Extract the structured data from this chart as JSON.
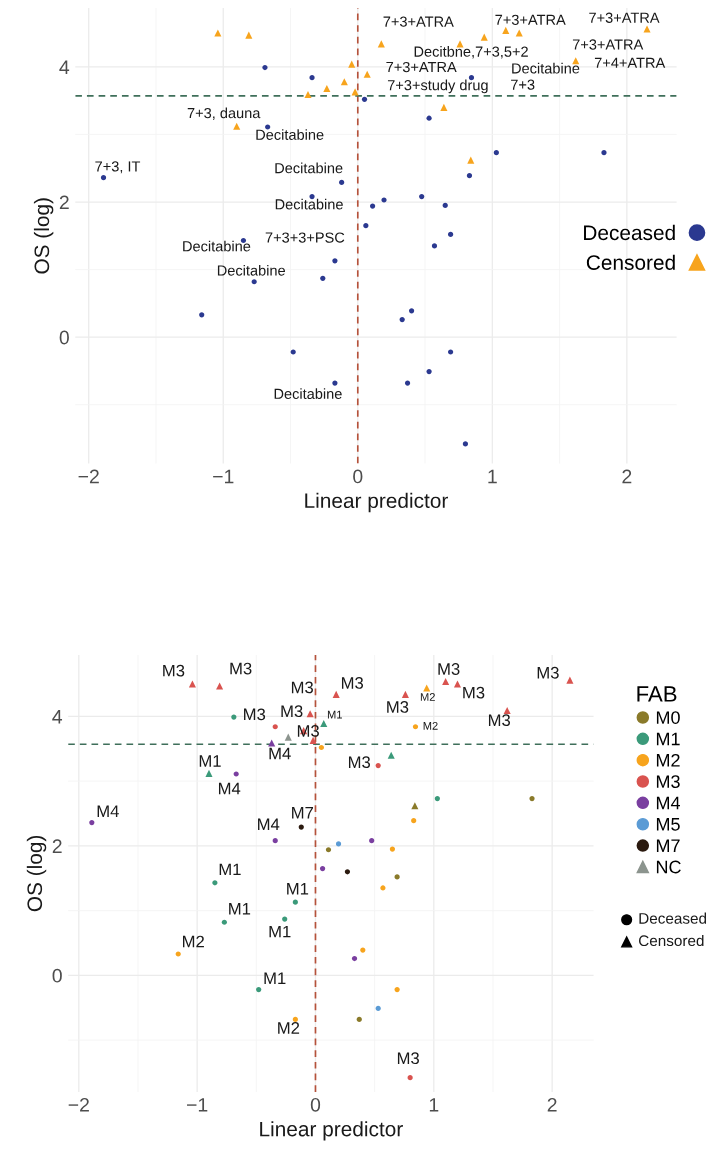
{
  "chart_data": [
    {
      "type": "scatter",
      "xlabel": "Linear predictor",
      "ylabel": "OS (log)",
      "xlim": [
        -2.1,
        2.37
      ],
      "ylim": [
        -1.87,
        4.87
      ],
      "xticks": [
        -2,
        -1,
        0,
        1,
        2
      ],
      "yticks": [
        0,
        2,
        4
      ],
      "grid": true,
      "legend": "right",
      "series": [
        {
          "name": "Deceased",
          "color": "#2b3990",
          "marker": "circle",
          "x": [
            -0.69,
            -0.34,
            -0.67,
            -1.89,
            -0.12,
            -0.34,
            -0.85,
            -0.17,
            -0.26,
            -0.77,
            -1.16,
            -0.48,
            -0.17,
            0.33,
            0.4,
            0.69,
            0.53,
            0.37,
            0.8,
            0.05,
            0.53,
            1.03,
            1.83,
            0.83,
            0.475,
            0.65,
            0.195,
            0.11,
            0.06,
            0.69,
            0.57,
            0.845
          ],
          "values": [
            3.99,
            3.84,
            3.11,
            2.36,
            2.29,
            2.08,
            1.43,
            1.13,
            0.87,
            0.82,
            0.33,
            -0.22,
            -0.68,
            0.26,
            0.39,
            -0.22,
            -0.51,
            -0.68,
            -1.58,
            3.52,
            3.24,
            2.73,
            2.73,
            2.39,
            2.08,
            1.95,
            2.03,
            1.94,
            1.65,
            1.52,
            1.35,
            3.84
          ]
        },
        {
          "name": "Censored",
          "color": "#f7a41d",
          "marker": "triangle",
          "x": [
            -1.04,
            -0.81,
            -0.045,
            -0.1,
            -0.23,
            -0.37,
            -0.02,
            -0.9,
            0.175,
            0.76,
            0.94,
            1.1,
            1.2,
            2.15,
            1.62,
            0.07,
            0.64,
            0.84
          ],
          "values": [
            4.5,
            4.47,
            4.04,
            3.78,
            3.68,
            3.59,
            3.63,
            3.12,
            4.34,
            4.34,
            4.44,
            4.54,
            4.5,
            4.56,
            4.09,
            3.89,
            3.4,
            2.62
          ]
        }
      ],
      "ref_lines": [
        {
          "axis": "x",
          "value": 0,
          "color": "#b5523b",
          "line_style": "dashed"
        },
        {
          "axis": "y",
          "value": 3.57,
          "color": "#3f6f5a",
          "line_style": "dashed"
        }
      ],
      "annotations": [
        {
          "text": "7+3, dauna",
          "x": -0.9,
          "y": 3.12
        },
        {
          "text": "Decitabine",
          "x": -0.67,
          "y": 3.11
        },
        {
          "text": "7+3, IT",
          "x": -1.89,
          "y": 2.36
        },
        {
          "text": "Decitabine",
          "x": -0.12,
          "y": 2.29
        },
        {
          "text": "Decitabine",
          "x": -0.34,
          "y": 2.08
        },
        {
          "text": "7+3+3+PSC",
          "x": -0.17,
          "y": 1.13
        },
        {
          "text": "Decitabine",
          "x": -0.85,
          "y": 1.43
        },
        {
          "text": "Decitabine",
          "x": -0.77,
          "y": 0.82
        },
        {
          "text": "Decitabine",
          "x": -0.17,
          "y": -0.68
        },
        {
          "text": "7+3+ATRA",
          "x": 0.175,
          "y": 4.34
        },
        {
          "text": "Decitbne,7+3,5+2",
          "x": 0.76,
          "y": 4.34
        },
        {
          "text": "7+3+ATRA",
          "x": 1.2,
          "y": 4.5
        },
        {
          "text": "7+3+ATRA",
          "x": 2.15,
          "y": 4.56
        },
        {
          "text": "7+3+ATRA",
          "x": 1.62,
          "y": 4.09
        },
        {
          "text": "7+3+ATRA",
          "x": 0.07,
          "y": 3.89
        },
        {
          "text": "7+3+study drug",
          "x": 0.64,
          "y": 3.4
        },
        {
          "text": "Decitabine",
          "x": 0.845,
          "y": 3.84
        },
        "7+3",
        "7+4+ATRA"
      ]
    },
    {
      "type": "scatter",
      "xlabel": "Linear predictor",
      "ylabel": "OS (log)",
      "xlim": [
        -2.09,
        2.35
      ],
      "ylim": [
        -1.8,
        4.95
      ],
      "xticks": [
        -2,
        -1,
        0,
        1,
        2
      ],
      "yticks": [
        0,
        2,
        4
      ],
      "grid": true,
      "legend": "right",
      "legend_title": "FAB",
      "series": [
        {
          "name": "M0",
          "color": "#8a7a2a",
          "marker": "circle",
          "x": [
            0.37,
            1.83,
            0.11,
            0.69
          ],
          "values": [
            -0.68,
            2.73,
            1.94,
            1.52
          ]
        },
        {
          "color": "#8a7a2a",
          "marker": "triangle",
          "x": [
            0.84
          ],
          "values": [
            2.62
          ]
        },
        {
          "name": "M1",
          "color": "#3b9a7a",
          "marker": "circle",
          "x": [
            -0.69,
            -0.85,
            -0.17,
            -0.26,
            -0.77,
            -0.48,
            1.03
          ],
          "values": [
            3.99,
            1.43,
            1.13,
            0.87,
            0.82,
            -0.22,
            2.73
          ]
        },
        {
          "color": "#3b9a7a",
          "marker": "triangle",
          "x": [
            -0.9,
            0.07,
            0.64
          ],
          "values": [
            3.12,
            3.89,
            3.4
          ]
        },
        {
          "name": "M2",
          "color": "#f7a41d",
          "marker": "circle",
          "x": [
            -1.16,
            -0.17,
            0.4,
            0.69,
            0.05,
            0.83,
            0.65,
            0.57,
            0.845
          ],
          "values": [
            0.33,
            -0.68,
            0.39,
            -0.22,
            3.52,
            2.39,
            1.95,
            1.35,
            3.84
          ]
        },
        {
          "color": "#f7a41d",
          "marker": "triangle",
          "x": [
            0.94
          ],
          "values": [
            4.44
          ]
        },
        {
          "name": "M3",
          "color": "#d9534f",
          "marker": "circle",
          "x": [
            -0.34,
            0.8,
            0.53
          ],
          "values": [
            3.84,
            -1.58,
            3.24
          ]
        },
        {
          "color": "#d9534f",
          "marker": "triangle",
          "x": [
            -1.04,
            -0.81,
            -0.045,
            -0.1,
            -0.02,
            0.175,
            0.76,
            1.1,
            1.2,
            2.15,
            1.62
          ],
          "values": [
            4.5,
            4.47,
            4.04,
            3.78,
            3.63,
            4.34,
            4.34,
            4.54,
            4.5,
            4.56,
            4.09
          ]
        },
        {
          "name": "M4",
          "color": "#7a3fa0",
          "marker": "circle",
          "x": [
            -0.67,
            -1.89,
            -0.34,
            0.33,
            0.475,
            0.06
          ],
          "values": [
            3.11,
            2.36,
            2.08,
            0.26,
            2.08,
            1.65
          ]
        },
        {
          "color": "#7a3fa0",
          "marker": "triangle",
          "x": [
            -0.37
          ],
          "values": [
            3.59
          ]
        },
        {
          "name": "M5",
          "color": "#5b9bd5",
          "marker": "circle",
          "x": [
            0.53,
            0.195
          ],
          "values": [
            -0.51,
            2.03
          ]
        },
        {
          "name": "M7",
          "color": "#2b1a0f",
          "marker": "circle",
          "x": [
            -0.12,
            0.27
          ],
          "values": [
            2.29,
            1.6
          ]
        },
        {
          "name": "NC",
          "color": "#8c948e",
          "marker": "triangle",
          "x": [
            -0.23
          ],
          "values": [
            3.68
          ]
        }
      ],
      "ref_lines": [
        {
          "axis": "x",
          "value": 0,
          "color": "#b5523b",
          "line_style": "dashed"
        },
        {
          "axis": "y",
          "value": 3.57,
          "color": "#3f6f5a",
          "line_style": "dashed"
        }
      ],
      "annotations": [
        {
          "text": "M3",
          "x": -1.04,
          "y": 4.5
        },
        {
          "text": "M3",
          "x": -0.81,
          "y": 4.47
        },
        {
          "text": "M3",
          "x": -0.34,
          "y": 3.84
        },
        {
          "text": "M3",
          "x": 0.175,
          "y": 4.34
        },
        {
          "text": "M3",
          "x": -0.045,
          "y": 4.04
        },
        {
          "text": "M3",
          "x": -0.1,
          "y": 3.78
        },
        {
          "text": "M3",
          "x": -0.02,
          "y": 3.63
        },
        {
          "text": "M1",
          "x": 0.07,
          "y": 3.89
        },
        {
          "text": "M4",
          "x": -0.37,
          "y": 3.59
        },
        {
          "text": "M1",
          "x": -0.9,
          "y": 3.12
        },
        {
          "text": "M4",
          "x": -0.67,
          "y": 3.11
        },
        {
          "text": "M4",
          "x": -1.89,
          "y": 2.36
        },
        {
          "text": "M7",
          "x": -0.12,
          "y": 2.29
        },
        {
          "text": "M4",
          "x": -0.34,
          "y": 2.08
        },
        {
          "text": "M1",
          "x": -0.85,
          "y": 1.43
        },
        {
          "text": "M1",
          "x": -0.17,
          "y": 1.13
        },
        {
          "text": "M1",
          "x": -0.77,
          "y": 0.82
        },
        {
          "text": "M1",
          "x": -0.26,
          "y": 0.87
        },
        {
          "text": "M2",
          "x": -1.16,
          "y": 0.33
        },
        {
          "text": "M3",
          "x": 0.76,
          "y": 4.34
        },
        {
          "text": "M2",
          "x": 0.94,
          "y": 4.44
        },
        {
          "text": "M3",
          "x": 1.1,
          "y": 4.54
        },
        {
          "text": "M3",
          "x": 1.2,
          "y": 4.5
        },
        {
          "text": "M3",
          "x": 2.15,
          "y": 4.56
        },
        {
          "text": "M3",
          "x": 1.62,
          "y": 4.09
        },
        {
          "text": "M2",
          "x": 0.845,
          "y": 3.84
        },
        {
          "text": "M3",
          "x": 0.53,
          "y": 3.24
        },
        {
          "text": "M1",
          "x": -0.48,
          "y": -0.22
        },
        {
          "text": "M2",
          "x": -0.17,
          "y": -0.68
        },
        {
          "text": "M3",
          "x": 0.8,
          "y": -1.58
        },
        "Deceased",
        "Censored"
      ]
    }
  ]
}
